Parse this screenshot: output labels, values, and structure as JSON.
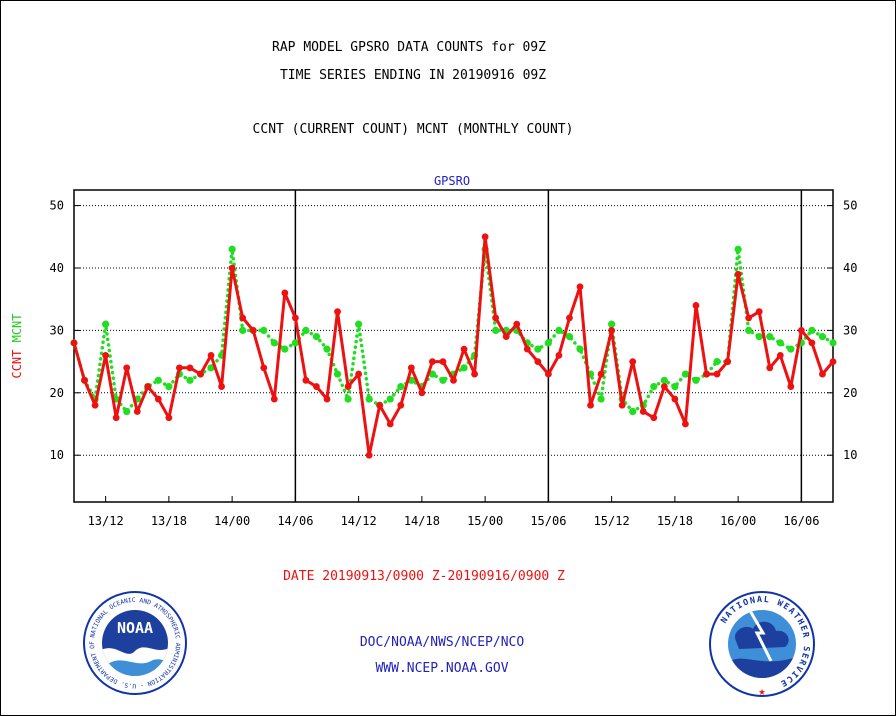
{
  "header": {
    "title_line1": "RAP MODEL GPSRO DATA COUNTS for 09Z",
    "title_line2": "TIME SERIES ENDING IN 20190916 09Z",
    "title_line3": "CCNT (CURRENT COUNT) MCNT (MONTHLY COUNT)"
  },
  "footer": {
    "date_range": "DATE 20190913/0900 Z-20190916/0900 Z",
    "org": "DOC/NOAA/NWS/NCEP/NCO",
    "url": "WWW.NCEP.NOAA.GOV"
  },
  "logos": {
    "left_word": "NOAA",
    "left_ring_text": "NATIONAL OCEANIC AND ATMOSPHERIC ADMINISTRATION · U.S. DEPARTMENT OF COMMERCE ·",
    "right_ring_text": "NATIONAL WEATHER SERVICE"
  },
  "chart_data": {
    "type": "line",
    "title": "GPSRO",
    "ylabel_left": "CCNT",
    "ylabel_right": "MCNT",
    "ylim": [
      2.5,
      52.5
    ],
    "yticks": [
      10,
      20,
      30,
      40,
      50
    ],
    "x_range": [
      0,
      72
    ],
    "x_unit": "hours from 20190913/0900 Z",
    "xticks": [
      {
        "x": 3,
        "label": "13/12"
      },
      {
        "x": 9,
        "label": "13/18"
      },
      {
        "x": 15,
        "label": "14/00"
      },
      {
        "x": 21,
        "label": "14/06"
      },
      {
        "x": 27,
        "label": "14/12"
      },
      {
        "x": 33,
        "label": "14/18"
      },
      {
        "x": 39,
        "label": "15/00"
      },
      {
        "x": 45,
        "label": "15/06"
      },
      {
        "x": 51,
        "label": "15/12"
      },
      {
        "x": 57,
        "label": "15/18"
      },
      {
        "x": 63,
        "label": "16/00"
      },
      {
        "x": 69,
        "label": "16/06"
      }
    ],
    "day_dividers": [
      21,
      45,
      69
    ],
    "grid": "dotted horizontal",
    "colors": {
      "ccnt": "#ee1111",
      "mcnt": "#22dd22",
      "title": "#2222cc"
    },
    "series": [
      {
        "name": "CCNT",
        "values": [
          28,
          22,
          18,
          26,
          16,
          24,
          17,
          21,
          19,
          16,
          24,
          24,
          23,
          26,
          21,
          40,
          32,
          30,
          24,
          19,
          36,
          32,
          22,
          21,
          19,
          33,
          21,
          23,
          10,
          18,
          15,
          18,
          24,
          20,
          25,
          25,
          22,
          27,
          23,
          45,
          32,
          29,
          31,
          27,
          25,
          23,
          26,
          32,
          37,
          18,
          23,
          30,
          18,
          25,
          17,
          16,
          21,
          19,
          15,
          34,
          23,
          23,
          25,
          39,
          32,
          33,
          24,
          26,
          21,
          30,
          28,
          23,
          25
        ]
      },
      {
        "name": "MCNT",
        "values": [
          28,
          22,
          19,
          31,
          19,
          17,
          19,
          21,
          22,
          21,
          23,
          22,
          23,
          24,
          26,
          43,
          30,
          30,
          30,
          28,
          27,
          28,
          30,
          29,
          27,
          23,
          19,
          31,
          19,
          18,
          19,
          21,
          22,
          21,
          23,
          22,
          23,
          24,
          26,
          43,
          30,
          30,
          30,
          28,
          27,
          28,
          30,
          29,
          27,
          23,
          19,
          31,
          19,
          17,
          18,
          21,
          22,
          21,
          23,
          22,
          23,
          25,
          25,
          43,
          30,
          29,
          29,
          28,
          27,
          28,
          30,
          29,
          28
        ]
      }
    ]
  }
}
